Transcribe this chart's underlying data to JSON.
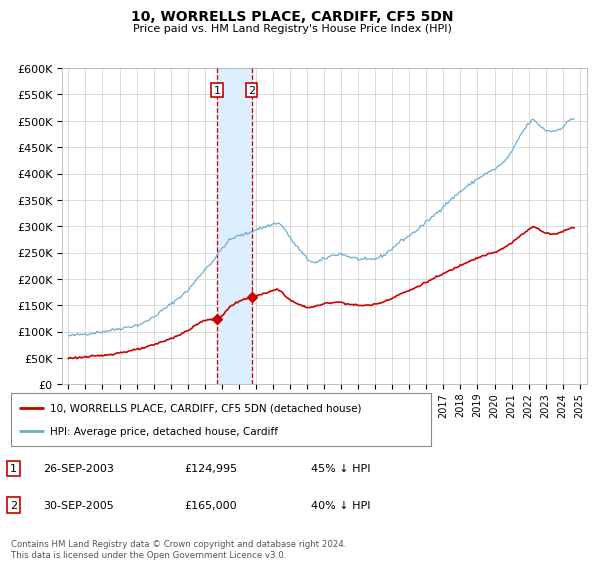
{
  "title": "10, WORRELLS PLACE, CARDIFF, CF5 5DN",
  "subtitle": "Price paid vs. HM Land Registry's House Price Index (HPI)",
  "footer": "Contains HM Land Registry data © Crown copyright and database right 2024.\nThis data is licensed under the Open Government Licence v3.0.",
  "legend_line1": "10, WORRELLS PLACE, CARDIFF, CF5 5DN (detached house)",
  "legend_line2": "HPI: Average price, detached house, Cardiff",
  "sale1_date": "26-SEP-2003",
  "sale1_price": "£124,995",
  "sale1_pct": "45% ↓ HPI",
  "sale2_date": "30-SEP-2005",
  "sale2_price": "£165,000",
  "sale2_pct": "40% ↓ HPI",
  "hpi_color": "#6baed6",
  "house_color": "#cc0000",
  "shade_color": "#ddeeff",
  "marker_box_color": "#cc0000",
  "ylim": [
    0,
    600000
  ],
  "yticks": [
    0,
    50000,
    100000,
    150000,
    200000,
    250000,
    300000,
    350000,
    400000,
    450000,
    500000,
    550000,
    600000
  ],
  "sale1_year": 2003.73,
  "sale2_year": 2005.75,
  "sale1_price_val": 124995,
  "sale2_price_val": 165000,
  "xlim_left": 1994.6,
  "xlim_right": 2025.4
}
